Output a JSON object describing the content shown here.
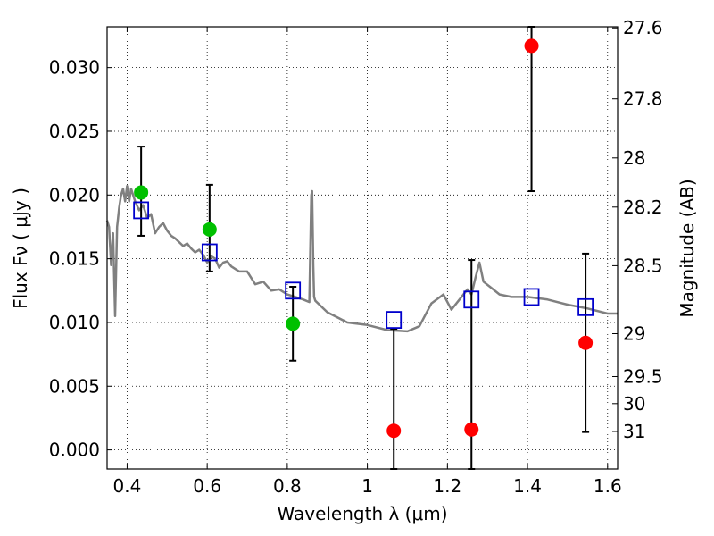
{
  "chart_data": {
    "type": "scatter",
    "xlabel": "Wavelength  λ (μm)",
    "ylabel": "Flux  Fν  ( μJy )",
    "y2label": "Magnitude (AB)",
    "xlim": [
      0.35,
      1.625
    ],
    "ylim": [
      -0.0015,
      0.0332
    ],
    "grid": true,
    "x_ticks": [
      {
        "value": 0.4,
        "label": "0.4"
      },
      {
        "value": 0.6,
        "label": "0.6"
      },
      {
        "value": 0.8,
        "label": "0.8"
      },
      {
        "value": 1.0,
        "label": "1"
      },
      {
        "value": 1.2,
        "label": "1.2"
      },
      {
        "value": 1.4,
        "label": "1.4"
      },
      {
        "value": 1.6,
        "label": "1.6"
      }
    ],
    "y_ticks": [
      {
        "value": 0.0,
        "label": "0.000"
      },
      {
        "value": 0.005,
        "label": "0.005"
      },
      {
        "value": 0.01,
        "label": "0.010"
      },
      {
        "value": 0.015,
        "label": "0.015"
      },
      {
        "value": 0.02,
        "label": "0.020"
      },
      {
        "value": 0.025,
        "label": "0.025"
      },
      {
        "value": 0.03,
        "label": "0.030"
      }
    ],
    "y2_ticks": [
      {
        "mag": 27.6,
        "label": "27.6"
      },
      {
        "mag": 27.8,
        "label": "27.8"
      },
      {
        "mag": 28.0,
        "label": "28"
      },
      {
        "mag": 28.2,
        "label": "28.2"
      },
      {
        "mag": 28.5,
        "label": "28.5"
      },
      {
        "mag": 29.0,
        "label": "29"
      },
      {
        "mag": 29.5,
        "label": "29.5"
      },
      {
        "mag": 30.0,
        "label": "30"
      },
      {
        "mag": 31.0,
        "label": "31"
      }
    ],
    "model_spectrum": {
      "color": "#808080",
      "x": [
        0.35,
        0.355,
        0.36,
        0.365,
        0.37,
        0.375,
        0.38,
        0.385,
        0.39,
        0.395,
        0.4,
        0.405,
        0.41,
        0.42,
        0.43,
        0.44,
        0.45,
        0.46,
        0.47,
        0.48,
        0.49,
        0.5,
        0.51,
        0.52,
        0.53,
        0.54,
        0.55,
        0.56,
        0.57,
        0.58,
        0.59,
        0.6,
        0.61,
        0.62,
        0.63,
        0.64,
        0.65,
        0.66,
        0.68,
        0.7,
        0.72,
        0.74,
        0.76,
        0.78,
        0.8,
        0.82,
        0.84,
        0.855,
        0.86,
        0.862,
        0.865,
        0.867,
        0.87,
        0.9,
        0.95,
        1.0,
        1.05,
        1.1,
        1.13,
        1.16,
        1.19,
        1.21,
        1.23,
        1.25,
        1.26,
        1.27,
        1.28,
        1.29,
        1.31,
        1.33,
        1.36,
        1.4,
        1.45,
        1.5,
        1.55,
        1.6,
        1.625
      ],
      "y": [
        0.018,
        0.0175,
        0.0145,
        0.017,
        0.0105,
        0.0175,
        0.019,
        0.02,
        0.0205,
        0.0195,
        0.0207,
        0.0195,
        0.0205,
        0.0195,
        0.0188,
        0.0192,
        0.0182,
        0.0185,
        0.017,
        0.0175,
        0.0178,
        0.0172,
        0.0168,
        0.0166,
        0.0163,
        0.016,
        0.0162,
        0.0158,
        0.0155,
        0.0157,
        0.0153,
        0.0147,
        0.0152,
        0.015,
        0.0143,
        0.0147,
        0.0148,
        0.0144,
        0.014,
        0.014,
        0.013,
        0.0132,
        0.0125,
        0.0126,
        0.0122,
        0.012,
        0.0118,
        0.0116,
        0.02,
        0.0203,
        0.0145,
        0.012,
        0.0117,
        0.0108,
        0.01,
        0.0098,
        0.0094,
        0.0093,
        0.0097,
        0.0115,
        0.0122,
        0.011,
        0.0118,
        0.0126,
        0.0122,
        0.0135,
        0.0147,
        0.0132,
        0.0127,
        0.0122,
        0.012,
        0.012,
        0.0118,
        0.0114,
        0.0111,
        0.0107,
        0.0107
      ]
    },
    "series": [
      {
        "marker": "circle-filled",
        "color": "#00c000",
        "points": [
          {
            "x": 0.435,
            "y": 0.0202,
            "ylo": 0.0168,
            "yhi": 0.0238
          },
          {
            "x": 0.606,
            "y": 0.0173,
            "ylo": 0.014,
            "yhi": 0.0208
          },
          {
            "x": 0.814,
            "y": 0.0099,
            "ylo": 0.007,
            "yhi": 0.0128
          }
        ]
      },
      {
        "marker": "circle-filled",
        "color": "#ff0000",
        "points": [
          {
            "x": 1.066,
            "y": 0.0015,
            "ylo": -0.0015,
            "yhi": 0.0095
          },
          {
            "x": 1.26,
            "y": 0.0016,
            "ylo": -0.0015,
            "yhi": 0.0149
          },
          {
            "x": 1.41,
            "y": 0.0317,
            "ylo": 0.0203,
            "yhi": 0.0332
          },
          {
            "x": 1.545,
            "y": 0.0084,
            "ylo": 0.0014,
            "yhi": 0.0154
          }
        ]
      },
      {
        "marker": "square-open",
        "color": "#0000cc",
        "points": [
          {
            "x": 0.435,
            "y": 0.0188
          },
          {
            "x": 0.606,
            "y": 0.0155
          },
          {
            "x": 0.814,
            "y": 0.0125
          },
          {
            "x": 1.066,
            "y": 0.0102
          },
          {
            "x": 1.26,
            "y": 0.0118
          },
          {
            "x": 1.41,
            "y": 0.012
          },
          {
            "x": 1.545,
            "y": 0.0112
          }
        ]
      }
    ]
  }
}
